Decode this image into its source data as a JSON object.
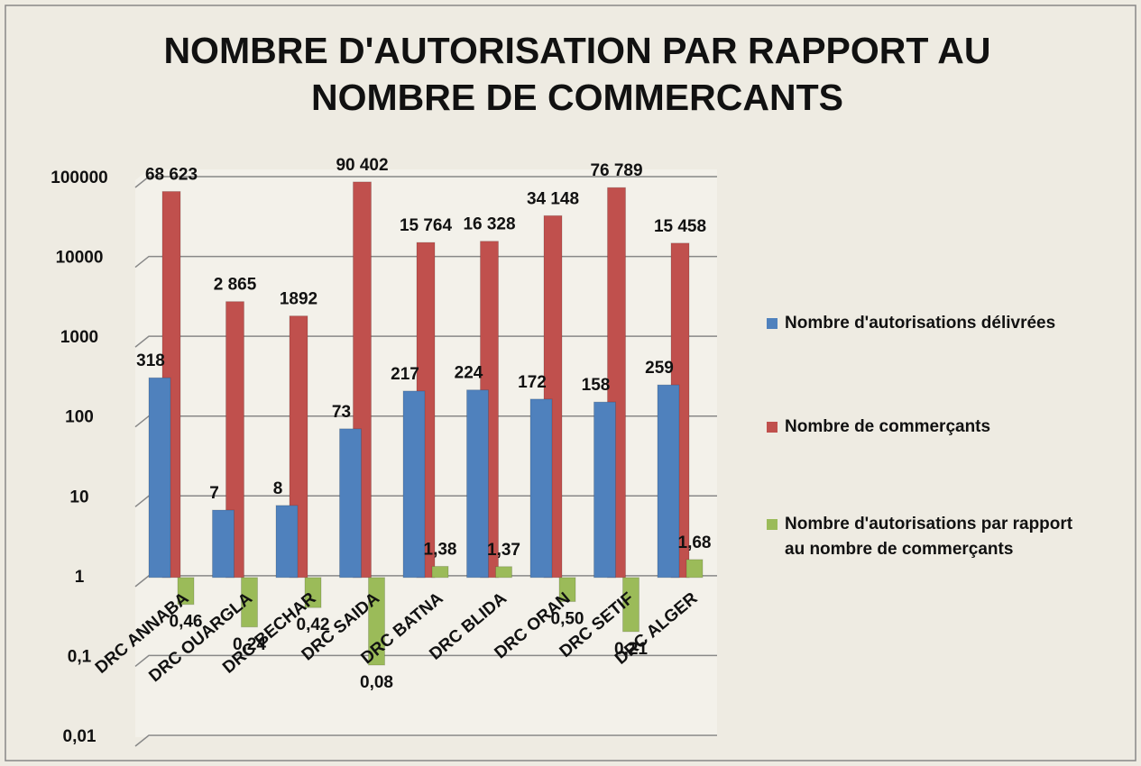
{
  "chart_data": {
    "type": "bar",
    "title": "NOMBRE D'AUTORISATION PAR RAPPORT AU NOMBRE DE COMMERCANTS",
    "categories": [
      "DRC ANNABA",
      "DRC OUARGLA",
      "DRC BECHAR",
      "DRC SAIDA",
      "DRC BATNA",
      "DRC BLIDA",
      "DRC ORAN",
      "DRC SETIF",
      "DRC ALGER"
    ],
    "series": [
      {
        "name": "Nombre d'autorisations délivrées",
        "color": "#4f81bd",
        "values": [
          318,
          7,
          8,
          73,
          217,
          224,
          172,
          158,
          259
        ]
      },
      {
        "name": "Nombre de commerçants",
        "color": "#c0504d",
        "values": [
          68623,
          2865,
          1892,
          90402,
          15764,
          16328,
          34148,
          76789,
          15458
        ],
        "value_labels": [
          "68 623",
          "2 865",
          "1892",
          "90 402",
          "15 764",
          "16 328",
          "34 148",
          "76 789",
          "15 458"
        ]
      },
      {
        "name": "Nombre d'autorisations par rapport au nombre de commerçants",
        "color": "#9bbb59",
        "values": [
          0.46,
          0.24,
          0.42,
          0.08,
          1.38,
          1.37,
          0.5,
          0.21,
          1.68
        ],
        "value_labels": [
          "0,46",
          "0,24",
          "0,42",
          "0,08",
          "1,38",
          "1,37",
          "0,50",
          "0,21",
          "1,68"
        ]
      }
    ],
    "log_scale": true,
    "ylim": [
      0.01,
      100000
    ],
    "yticks": [
      {
        "value": 0.01,
        "label": "0,01"
      },
      {
        "value": 0.1,
        "label": "0,1"
      },
      1,
      10,
      100,
      1000,
      10000,
      100000
    ],
    "grid": true,
    "legend": "right"
  }
}
